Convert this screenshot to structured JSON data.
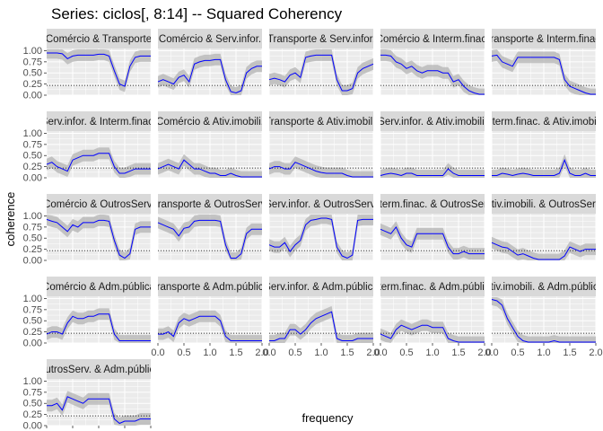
{
  "title": "Series: ciclos[, 8:14] --  Squared Coherency",
  "chart_data": {
    "type": "line",
    "xlabel": "frequency",
    "ylabel": "coherence",
    "xlim": [
      0,
      2
    ],
    "ylim": [
      0,
      1.05
    ],
    "x_ticks": [
      "0.0",
      "0.5",
      "1.0",
      "1.5",
      "2.0"
    ],
    "y_ticks": [
      "0.00",
      "0.25",
      "0.50",
      "0.75",
      "1.00"
    ],
    "threshold": 0.22,
    "colors": {
      "line": "#0000ff",
      "band": "#b3b3b3",
      "panel": "#ebebeb",
      "strip": "#d9d9d9",
      "grid": "#ffffff"
    },
    "x": [
      0.0,
      0.1,
      0.2,
      0.3,
      0.4,
      0.5,
      0.6,
      0.7,
      0.8,
      0.9,
      1.0,
      1.1,
      1.2,
      1.3,
      1.4,
      1.5,
      1.6,
      1.7,
      1.8,
      1.9,
      2.0
    ],
    "panels": [
      {
        "label": "Comércio & Transporte",
        "values": [
          0.95,
          0.95,
          0.95,
          0.93,
          0.82,
          0.88,
          0.9,
          0.9,
          0.9,
          0.9,
          0.92,
          0.92,
          0.88,
          0.55,
          0.25,
          0.2,
          0.65,
          0.85,
          0.88,
          0.88,
          0.88
        ]
      },
      {
        "label": "Comércio & Serv.infor.",
        "values": [
          0.3,
          0.35,
          0.3,
          0.25,
          0.4,
          0.45,
          0.3,
          0.7,
          0.75,
          0.78,
          0.78,
          0.8,
          0.8,
          0.35,
          0.08,
          0.05,
          0.1,
          0.5,
          0.6,
          0.65,
          0.65
        ]
      },
      {
        "label": "Transporte & Serv.infor.",
        "values": [
          0.35,
          0.38,
          0.35,
          0.3,
          0.45,
          0.5,
          0.4,
          0.85,
          0.88,
          0.9,
          0.9,
          0.9,
          0.9,
          0.35,
          0.1,
          0.1,
          0.15,
          0.5,
          0.6,
          0.65,
          0.7
        ]
      },
      {
        "label": "Comércio & Interm.finac.",
        "values": [
          0.9,
          0.9,
          0.88,
          0.75,
          0.7,
          0.6,
          0.65,
          0.55,
          0.5,
          0.55,
          0.55,
          0.55,
          0.5,
          0.5,
          0.3,
          0.35,
          0.2,
          0.1,
          0.05,
          0.02,
          0.02
        ]
      },
      {
        "label": "Transporte & Interm.finac.",
        "values": [
          0.88,
          0.9,
          0.75,
          0.7,
          0.65,
          0.85,
          0.85,
          0.85,
          0.85,
          0.85,
          0.85,
          0.85,
          0.85,
          0.8,
          0.35,
          0.2,
          0.15,
          0.1,
          0.05,
          0.02,
          0.02
        ]
      },
      {
        "label": "Serv.infor. & Interm.finac.",
        "values": [
          0.3,
          0.35,
          0.25,
          0.2,
          0.15,
          0.4,
          0.45,
          0.5,
          0.5,
          0.5,
          0.55,
          0.55,
          0.55,
          0.25,
          0.1,
          0.1,
          0.15,
          0.2,
          0.2,
          0.2,
          0.2
        ]
      },
      {
        "label": "Comércio & Ativ.imobili.",
        "values": [
          0.2,
          0.25,
          0.3,
          0.25,
          0.2,
          0.4,
          0.3,
          0.2,
          0.2,
          0.15,
          0.1,
          0.1,
          0.05,
          0.05,
          0.1,
          0.05,
          0.02,
          0.02,
          0.02,
          0.02,
          0.02
        ]
      },
      {
        "label": "Transporte & Ativ.imobili.",
        "values": [
          0.2,
          0.25,
          0.25,
          0.2,
          0.2,
          0.35,
          0.3,
          0.25,
          0.2,
          0.15,
          0.12,
          0.1,
          0.1,
          0.1,
          0.1,
          0.05,
          0.02,
          0.02,
          0.02,
          0.02,
          0.02
        ]
      },
      {
        "label": "Serv.infor. & Ativ.imobili.",
        "values": [
          0.05,
          0.08,
          0.1,
          0.08,
          0.05,
          0.1,
          0.1,
          0.05,
          0.05,
          0.05,
          0.05,
          0.05,
          0.05,
          0.2,
          0.1,
          0.05,
          0.05,
          0.05,
          0.05,
          0.05,
          0.05
        ]
      },
      {
        "label": "Interm.finac. & Ativ.imobili.",
        "values": [
          0.05,
          0.05,
          0.1,
          0.08,
          0.05,
          0.08,
          0.1,
          0.08,
          0.05,
          0.05,
          0.05,
          0.05,
          0.05,
          0.1,
          0.4,
          0.1,
          0.05,
          0.05,
          0.1,
          0.05,
          0.05
        ]
      },
      {
        "label": "Comércio & OutrosServ.",
        "values": [
          0.92,
          0.88,
          0.85,
          0.75,
          0.65,
          0.8,
          0.75,
          0.85,
          0.85,
          0.85,
          0.9,
          0.9,
          0.88,
          0.45,
          0.12,
          0.05,
          0.15,
          0.7,
          0.75,
          0.75,
          0.75
        ]
      },
      {
        "label": "Transporte & OutrosServ.",
        "values": [
          0.85,
          0.8,
          0.75,
          0.7,
          0.55,
          0.72,
          0.75,
          0.88,
          0.9,
          0.9,
          0.9,
          0.9,
          0.88,
          0.35,
          0.05,
          0.05,
          0.15,
          0.6,
          0.7,
          0.7,
          0.7
        ]
      },
      {
        "label": "Serv.infor. & OutrosServ.",
        "values": [
          0.35,
          0.3,
          0.3,
          0.4,
          0.2,
          0.35,
          0.45,
          0.8,
          0.9,
          0.92,
          0.95,
          0.95,
          0.92,
          0.3,
          0.1,
          0.05,
          0.12,
          0.9,
          0.92,
          0.92,
          0.92
        ]
      },
      {
        "label": "Interm.finac. & OutrosServ.",
        "values": [
          0.7,
          0.65,
          0.6,
          0.75,
          0.5,
          0.35,
          0.3,
          0.6,
          0.6,
          0.6,
          0.6,
          0.6,
          0.6,
          0.3,
          0.15,
          0.15,
          0.2,
          0.15,
          0.15,
          0.15,
          0.15
        ]
      },
      {
        "label": "Ativ.imobili. & OutrosServ.",
        "values": [
          0.4,
          0.35,
          0.3,
          0.28,
          0.2,
          0.12,
          0.15,
          0.1,
          0.05,
          0.02,
          0.02,
          0.02,
          0.02,
          0.02,
          0.1,
          0.3,
          0.25,
          0.2,
          0.25,
          0.25,
          0.25
        ]
      },
      {
        "label": "Comércio & Adm.pública",
        "values": [
          0.2,
          0.25,
          0.25,
          0.2,
          0.45,
          0.6,
          0.55,
          0.55,
          0.6,
          0.6,
          0.65,
          0.65,
          0.65,
          0.2,
          0.05,
          0.05,
          0.05,
          0.05,
          0.05,
          0.05,
          0.05
        ]
      },
      {
        "label": "Transporte & Adm.pública",
        "values": [
          0.2,
          0.2,
          0.25,
          0.15,
          0.45,
          0.55,
          0.5,
          0.55,
          0.6,
          0.6,
          0.6,
          0.6,
          0.5,
          0.15,
          0.05,
          0.05,
          0.05,
          0.05,
          0.05,
          0.05,
          0.05
        ]
      },
      {
        "label": "Serv.infor. & Adm.pública",
        "values": [
          0.05,
          0.05,
          0.1,
          0.1,
          0.3,
          0.3,
          0.2,
          0.3,
          0.45,
          0.55,
          0.6,
          0.65,
          0.7,
          0.1,
          0.05,
          0.05,
          0.05,
          0.1,
          0.1,
          0.1,
          0.1
        ]
      },
      {
        "label": "Interm.finac. & Adm.pública",
        "values": [
          0.2,
          0.15,
          0.1,
          0.3,
          0.4,
          0.35,
          0.3,
          0.35,
          0.4,
          0.4,
          0.35,
          0.35,
          0.35,
          0.1,
          0.05,
          0.02,
          0.02,
          0.02,
          0.02,
          0.02,
          0.02
        ]
      },
      {
        "label": "Ativ.imobili. & Adm.pública",
        "values": [
          0.98,
          0.95,
          0.85,
          0.55,
          0.35,
          0.15,
          0.05,
          0.02,
          0.02,
          0.02,
          0.02,
          0.02,
          0.05,
          0.02,
          0.02,
          0.02,
          0.02,
          0.02,
          0.02,
          0.02,
          0.02
        ]
      },
      {
        "label": "OutrosServ. & Adm.pública",
        "values": [
          0.45,
          0.45,
          0.5,
          0.35,
          0.65,
          0.6,
          0.55,
          0.5,
          0.6,
          0.6,
          0.6,
          0.6,
          0.6,
          0.15,
          0.05,
          0.1,
          0.1,
          0.1,
          0.15,
          0.15,
          0.15
        ]
      }
    ]
  }
}
